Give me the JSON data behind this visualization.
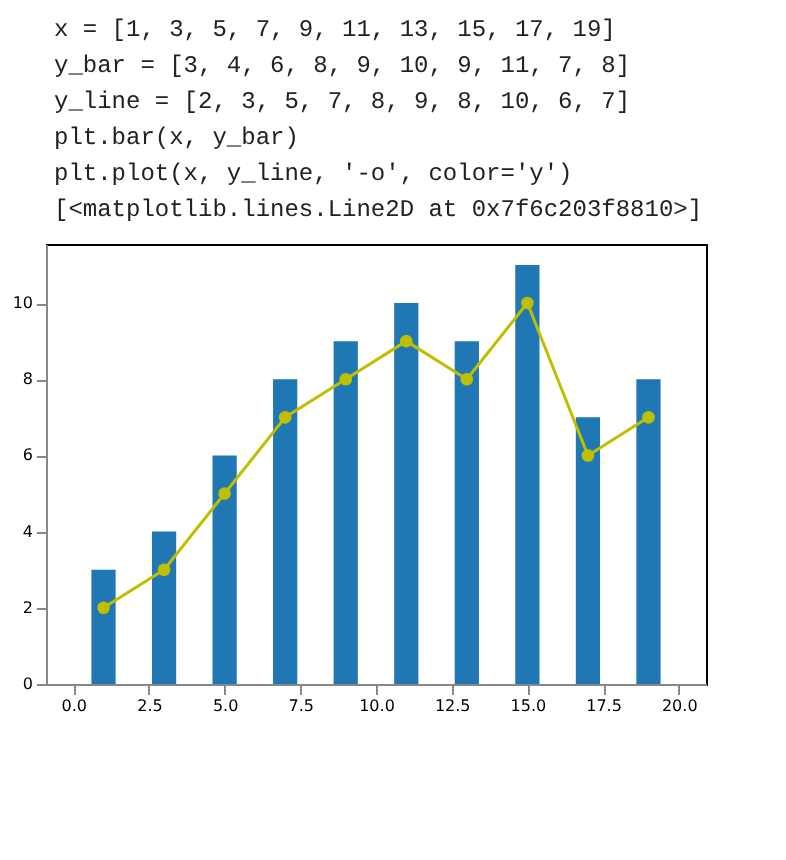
{
  "chart_data": {
    "type": "bar",
    "x": [
      1,
      3,
      5,
      7,
      9,
      11,
      13,
      15,
      17,
      19
    ],
    "series": [
      {
        "color": "#1f77b4",
        "values": [
          3,
          4,
          6,
          8,
          9,
          10,
          9,
          11,
          7,
          8
        ]
      },
      {
        "type": "line",
        "color": "#bfbf00",
        "values": [
          2,
          3,
          5,
          7,
          8,
          9,
          8,
          10,
          6,
          7
        ],
        "marker": "circle",
        "line_style": "solid"
      }
    ],
    "xlim": [
      -0.9,
      20.9
    ],
    "xticks": [
      {
        "value": 0,
        "label": "0.0"
      },
      {
        "value": 2.5,
        "label": "2.5"
      },
      {
        "value": 5,
        "label": "5.0"
      },
      {
        "value": 7.5,
        "label": "7.5"
      },
      {
        "value": 10,
        "label": "10.0"
      },
      {
        "value": 12.5,
        "label": "12.5"
      },
      {
        "value": 15,
        "label": "15.0"
      },
      {
        "value": 17.5,
        "label": "17.5"
      },
      {
        "value": 20,
        "label": "20.0"
      }
    ],
    "ylim": [
      0,
      11.55
    ],
    "yticks": [
      0,
      2,
      4,
      6,
      8,
      10
    ],
    "grid": false,
    "annotations": [
      "x = [1, 3, 5, 7, 9, 11, 13, 15, 17, 19]",
      "y_bar = [3, 4, 6, 8, 9, 10, 9, 11, 7, 8]",
      "y_line = [2, 3, 5, 7, 8, 9, 8, 10, 6, 7]",
      "plt.bar(x, y_bar)",
      "plt.plot(x, y_line, '-o', color='y')",
      "[<matplotlib.lines.Line2D at 0x7f6c203f8810>]"
    ]
  }
}
